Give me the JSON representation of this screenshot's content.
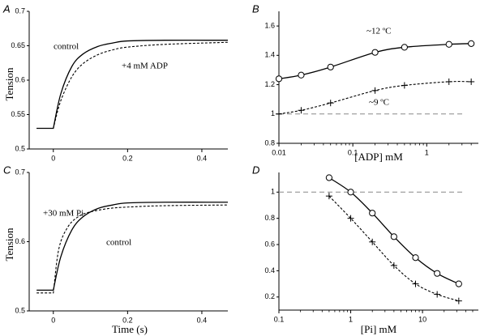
{
  "chart_data": [
    {
      "panel_letter": "A",
      "type": "line",
      "ylabel": "Tension",
      "xlabel": "",
      "xlim": [
        -0.065,
        0.47
      ],
      "ylim": [
        0.5,
        0.7
      ],
      "xticks": [
        {
          "v": 0,
          "label": "0"
        },
        {
          "v": 0.2,
          "label": "0.2"
        },
        {
          "v": 0.4,
          "label": "0.4"
        }
      ],
      "yticks": [
        {
          "v": 0.5,
          "label": "0.5"
        },
        {
          "v": 0.55,
          "label": "0.55"
        },
        {
          "v": 0.6,
          "label": "0.6"
        },
        {
          "v": 0.65,
          "label": "0.65"
        },
        {
          "v": 0.7,
          "label": "0.7"
        }
      ],
      "series": [
        {
          "label_text": "control",
          "style": "solid",
          "x": [
            -0.045,
            0,
            0.02,
            0.05,
            0.08,
            0.12,
            0.16,
            0.2,
            0.3,
            0.47
          ],
          "y": [
            0.53,
            0.53,
            0.58,
            0.62,
            0.638,
            0.649,
            0.654,
            0.657,
            0.658,
            0.658
          ]
        },
        {
          "label_text": "+4 mM ADP",
          "style": "dashed",
          "x": [
            -0.045,
            0,
            0.02,
            0.05,
            0.08,
            0.12,
            0.16,
            0.2,
            0.3,
            0.47
          ],
          "y": [
            0.53,
            0.53,
            0.57,
            0.605,
            0.624,
            0.637,
            0.644,
            0.648,
            0.652,
            0.655
          ]
        }
      ]
    },
    {
      "panel_letter": "B",
      "type": "line",
      "xlabel": "[ADP] mM",
      "ylabel": "",
      "xscale": "log",
      "xlim": [
        0.01,
        5
      ],
      "ylim": [
        0.8,
        1.7
      ],
      "xticks": [
        {
          "v": 0.01,
          "label": "0.01"
        },
        {
          "v": 0.1,
          "label": "0.1"
        },
        {
          "v": 1,
          "label": "1"
        }
      ],
      "yticks": [
        {
          "v": 0.8,
          "label": "0.8"
        },
        {
          "v": 1,
          "label": "1"
        },
        {
          "v": 1.2,
          "label": "1.2"
        },
        {
          "v": 1.4,
          "label": "1.4"
        },
        {
          "v": 1.6,
          "label": "1.6"
        }
      ],
      "reference_line": 1.0,
      "series": [
        {
          "label_text": "~12 ºC",
          "marker": "circle",
          "style": "solid",
          "x": [
            0.01,
            0.02,
            0.05,
            0.2,
            0.5,
            2,
            4
          ],
          "y": [
            1.24,
            1.265,
            1.32,
            1.42,
            1.455,
            1.475,
            1.48
          ]
        },
        {
          "label_text": "~9 ºC",
          "marker": "plus",
          "style": "dashed",
          "x": [
            0.01,
            0.02,
            0.05,
            0.2,
            0.5,
            2,
            4
          ],
          "y": [
            1.0,
            1.025,
            1.075,
            1.16,
            1.195,
            1.22,
            1.22
          ]
        }
      ]
    },
    {
      "panel_letter": "C",
      "type": "line",
      "ylabel": "Tension",
      "xlabel": "Time (s)",
      "xlim": [
        -0.065,
        0.47
      ],
      "ylim": [
        0.5,
        0.7
      ],
      "xticks": [
        {
          "v": 0,
          "label": "0"
        },
        {
          "v": 0.2,
          "label": "0.2"
        },
        {
          "v": 0.4,
          "label": "0.4"
        }
      ],
      "yticks": [
        {
          "v": 0.5,
          "label": "0.5"
        },
        {
          "v": 0.6,
          "label": "0.6"
        },
        {
          "v": 0.7,
          "label": "0.7"
        }
      ],
      "series": [
        {
          "label_text": "control",
          "style": "solid",
          "x": [
            -0.045,
            0,
            0.02,
            0.05,
            0.08,
            0.12,
            0.16,
            0.2,
            0.3,
            0.47
          ],
          "y": [
            0.53,
            0.53,
            0.578,
            0.617,
            0.636,
            0.648,
            0.653,
            0.656,
            0.657,
            0.657
          ]
        },
        {
          "label_text": "+30 mM Pi",
          "style": "dashed",
          "x": [
            -0.045,
            0,
            0.015,
            0.04,
            0.07,
            0.1,
            0.15,
            0.2,
            0.3,
            0.47
          ],
          "y": [
            0.526,
            0.526,
            0.59,
            0.622,
            0.637,
            0.643,
            0.648,
            0.65,
            0.652,
            0.653
          ]
        }
      ]
    },
    {
      "panel_letter": "D",
      "type": "line",
      "xlabel": "[Pi] mM",
      "ylabel": "",
      "xscale": "log",
      "xlim": [
        0.1,
        60
      ],
      "ylim": [
        0.1,
        1.15
      ],
      "xticks": [
        {
          "v": 0.1,
          "label": "0.1"
        },
        {
          "v": 1,
          "label": "1"
        },
        {
          "v": 10,
          "label": "10"
        }
      ],
      "yticks": [
        {
          "v": 0.2,
          "label": "0.2"
        },
        {
          "v": 0.4,
          "label": "0.4"
        },
        {
          "v": 0.6,
          "label": "0.6"
        },
        {
          "v": 0.8,
          "label": "0.8"
        },
        {
          "v": 1,
          "label": "1"
        }
      ],
      "reference_line": 1.0,
      "series": [
        {
          "marker": "circle",
          "style": "solid",
          "x": [
            0.5,
            1,
            2,
            4,
            8,
            16,
            32
          ],
          "y": [
            1.11,
            1.0,
            0.84,
            0.66,
            0.5,
            0.38,
            0.3
          ]
        },
        {
          "marker": "plus",
          "style": "dashed",
          "x": [
            0.5,
            1,
            2,
            4,
            8,
            16,
            32
          ],
          "y": [
            0.97,
            0.8,
            0.62,
            0.44,
            0.3,
            0.22,
            0.17
          ]
        }
      ]
    }
  ]
}
